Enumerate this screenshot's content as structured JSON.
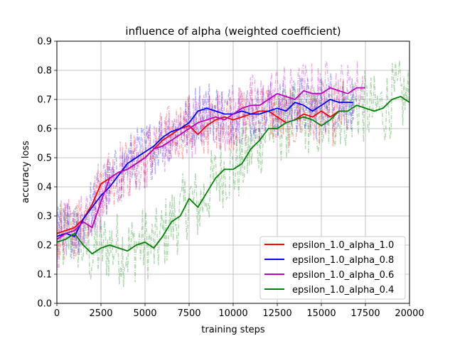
{
  "chart_data": {
    "type": "line",
    "title": "influence of alpha (weighted coefficient)",
    "xlabel": "training steps",
    "ylabel": "accuracy loss",
    "xlim": [
      0,
      20000
    ],
    "ylim": [
      0.0,
      0.9
    ],
    "xticks": [
      "0",
      "2500",
      "5000",
      "7500",
      "10000",
      "12500",
      "15000",
      "17500",
      "20000"
    ],
    "yticks": [
      "0.0",
      "0.1",
      "0.2",
      "0.3",
      "0.4",
      "0.5",
      "0.6",
      "0.7",
      "0.8",
      "0.9"
    ],
    "grid": true,
    "legend_position": "lower-right",
    "raw_series_style": "faint dash-dot noisy traces behind each smoothed line",
    "series": [
      {
        "name": "epsilon_1.0_alpha_1.0",
        "color": "#ff0000",
        "x": [
          0,
          500,
          1000,
          1500,
          2000,
          2500,
          3000,
          3500,
          4000,
          4500,
          5000,
          5500,
          6000,
          6500,
          7000,
          7500,
          8000,
          8500,
          9000,
          9500,
          10000,
          10500,
          11000,
          11500,
          12000,
          12500,
          13000,
          13500,
          14000,
          14500,
          15000,
          15500,
          16000,
          16500
        ],
        "y": [
          0.24,
          0.25,
          0.26,
          0.29,
          0.34,
          0.41,
          0.43,
          0.45,
          0.46,
          0.48,
          0.5,
          0.53,
          0.56,
          0.58,
          0.6,
          0.61,
          0.58,
          0.61,
          0.63,
          0.64,
          0.63,
          0.64,
          0.65,
          0.66,
          0.66,
          0.64,
          0.62,
          0.63,
          0.65,
          0.64,
          0.66,
          0.64,
          0.66,
          0.66
        ]
      },
      {
        "name": "epsilon_1.0_alpha_0.8",
        "color": "#0000ff",
        "x": [
          0,
          500,
          1000,
          1500,
          2000,
          2500,
          3000,
          3500,
          4000,
          4500,
          5000,
          5500,
          6000,
          6500,
          7000,
          7500,
          8000,
          8500,
          9000,
          9500,
          10000,
          10500,
          11000,
          11500,
          12000,
          12500,
          13000,
          13500,
          14000,
          14500,
          15000,
          15500,
          16000,
          16500,
          16800
        ],
        "y": [
          0.23,
          0.24,
          0.23,
          0.29,
          0.33,
          0.37,
          0.4,
          0.44,
          0.48,
          0.5,
          0.52,
          0.54,
          0.57,
          0.59,
          0.6,
          0.62,
          0.66,
          0.67,
          0.66,
          0.65,
          0.65,
          0.66,
          0.65,
          0.65,
          0.66,
          0.67,
          0.66,
          0.69,
          0.68,
          0.66,
          0.68,
          0.7,
          0.69,
          0.69,
          0.69
        ]
      },
      {
        "name": "epsilon_1.0_alpha_0.6",
        "color": "#bf00bf",
        "x": [
          0,
          500,
          1000,
          1500,
          2000,
          2500,
          3000,
          3500,
          4000,
          4500,
          5000,
          5500,
          6000,
          6500,
          7000,
          7500,
          8000,
          8500,
          9000,
          9500,
          10000,
          10500,
          11000,
          11500,
          12000,
          12500,
          13000,
          13500,
          14000,
          14500,
          15000,
          15500,
          16000,
          16500,
          17000,
          17500
        ],
        "y": [
          0.22,
          0.24,
          0.25,
          0.28,
          0.26,
          0.35,
          0.43,
          0.45,
          0.46,
          0.48,
          0.5,
          0.53,
          0.54,
          0.56,
          0.58,
          0.6,
          0.62,
          0.63,
          0.64,
          0.63,
          0.65,
          0.67,
          0.68,
          0.68,
          0.7,
          0.72,
          0.71,
          0.7,
          0.73,
          0.72,
          0.72,
          0.74,
          0.73,
          0.72,
          0.74,
          0.74
        ]
      },
      {
        "name": "epsilon_1.0_alpha_0.4",
        "color": "#008000",
        "x": [
          0,
          500,
          1000,
          1500,
          2000,
          2500,
          3000,
          3500,
          4000,
          4500,
          5000,
          5500,
          6000,
          6500,
          7000,
          7500,
          8000,
          8500,
          9000,
          9500,
          10000,
          10500,
          11000,
          11500,
          12000,
          12500,
          13000,
          13500,
          14000,
          14500,
          15000,
          15500,
          16000,
          16500,
          17000,
          17500,
          18000,
          18500,
          19000,
          19500,
          20000
        ],
        "y": [
          0.21,
          0.22,
          0.24,
          0.2,
          0.17,
          0.19,
          0.2,
          0.19,
          0.18,
          0.2,
          0.21,
          0.19,
          0.23,
          0.28,
          0.3,
          0.36,
          0.33,
          0.38,
          0.43,
          0.46,
          0.46,
          0.48,
          0.53,
          0.56,
          0.6,
          0.6,
          0.62,
          0.63,
          0.64,
          0.63,
          0.61,
          0.63,
          0.66,
          0.66,
          0.68,
          0.67,
          0.66,
          0.67,
          0.7,
          0.71,
          0.69
        ]
      }
    ]
  }
}
